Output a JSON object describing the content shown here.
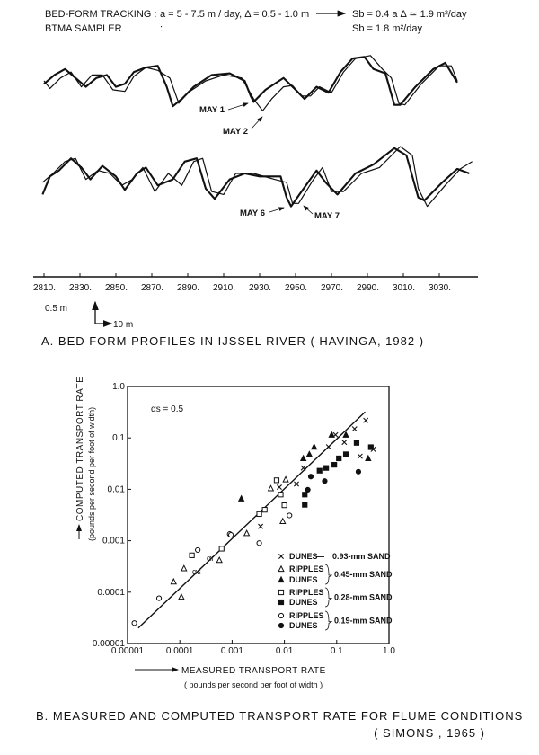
{
  "header": {
    "line1_label": "BED-FORM TRACKING :",
    "line1_params": "a = 5 - 7.5 m / day,  Δ = 0.5 - 1.0 m",
    "line1_result": "Sb = 0.4 a  Δ ≃ 1.9 m²/day",
    "line2_label": "BTMA  SAMPLER",
    "line2_colon": ":",
    "line2_result": "Sb = 1.8 m²/day"
  },
  "chart_data": [
    {
      "type": "line",
      "title": "A. BED FORM PROFILES IN IJSSEL RIVER ( HAVINGA, 1982 )",
      "xlabel": "",
      "ylabel": "",
      "x_ticks": [
        "2810.",
        "2830.",
        "2850.",
        "2870.",
        "2890.",
        "2910.",
        "2930.",
        "2950.",
        "2970.",
        "2990.",
        "3010.",
        "3030."
      ],
      "x_tick_values": [
        2810,
        2830,
        2850,
        2870,
        2890,
        2910,
        2930,
        2950,
        2970,
        2990,
        3010,
        3030
      ],
      "scale_bar": {
        "vertical": "0.5 m",
        "horizontal": "10 m"
      },
      "series": [
        {
          "name": "MAY 1",
          "panel": "upper",
          "weight": "thick",
          "points": [
            [
              2810,
              -0.11
            ],
            [
              2815.8,
              0.22
            ],
            [
              2821.7,
              0.44
            ],
            [
              2827.5,
              0.11
            ],
            [
              2833.3,
              -0.22
            ],
            [
              2839.2,
              0.11
            ],
            [
              2845,
              0.22
            ],
            [
              2850,
              -0.22
            ],
            [
              2855,
              -0.11
            ],
            [
              2860,
              0.33
            ],
            [
              2866.7,
              0.5
            ],
            [
              2873.3,
              0.56
            ],
            [
              2878.3,
              -0.22
            ],
            [
              2881.7,
              -0.94
            ],
            [
              2886.7,
              -0.67
            ],
            [
              2893.3,
              -0.22
            ],
            [
              2903.3,
              0.22
            ],
            [
              2913.3,
              0.28
            ],
            [
              2921.7,
              0
            ],
            [
              2925,
              -0.56
            ],
            [
              2926.7,
              -0.78
            ],
            [
              2933.3,
              -0.33
            ],
            [
              2943.3,
              0.11
            ],
            [
              2950,
              -0.33
            ],
            [
              2955,
              -0.67
            ],
            [
              2961.7,
              -0.22
            ],
            [
              2968.3,
              -0.44
            ],
            [
              2975,
              0.33
            ],
            [
              2981.7,
              0.83
            ],
            [
              2988.3,
              0.89
            ],
            [
              2993.3,
              0.44
            ],
            [
              3000,
              0.28
            ],
            [
              3005,
              -0.89
            ],
            [
              3008.3,
              -0.89
            ],
            [
              3016.7,
              -0.22
            ],
            [
              3026.7,
              0.44
            ],
            [
              3033.3,
              0.67
            ],
            [
              3040,
              -0.06
            ]
          ]
        },
        {
          "name": "MAY 2",
          "panel": "upper",
          "weight": "thin",
          "points": [
            [
              2810,
              0
            ],
            [
              2813.3,
              -0.28
            ],
            [
              2819.2,
              0.11
            ],
            [
              2825,
              0.33
            ],
            [
              2830.8,
              -0.22
            ],
            [
              2836.7,
              0.22
            ],
            [
              2842.5,
              0.22
            ],
            [
              2848.3,
              -0.33
            ],
            [
              2855,
              -0.39
            ],
            [
              2860,
              0.17
            ],
            [
              2866.7,
              0.5
            ],
            [
              2873.3,
              0.39
            ],
            [
              2880,
              0.11
            ],
            [
              2885,
              -0.83
            ],
            [
              2890,
              -0.44
            ],
            [
              2900,
              0
            ],
            [
              2910,
              0.22
            ],
            [
              2920,
              0.11
            ],
            [
              2926.7,
              -0.67
            ],
            [
              2931.7,
              -1.11
            ],
            [
              2936.7,
              -0.67
            ],
            [
              2943.3,
              -0.22
            ],
            [
              2948.3,
              -0.17
            ],
            [
              2953.3,
              -0.56
            ],
            [
              2958.3,
              -0.56
            ],
            [
              2963.3,
              -0.22
            ],
            [
              2970,
              -0.44
            ],
            [
              2976.7,
              0.33
            ],
            [
              2983.3,
              0.83
            ],
            [
              2991.7,
              0.94
            ],
            [
              2998.3,
              0.44
            ],
            [
              3003.3,
              0.11
            ],
            [
              3007.5,
              -0.83
            ],
            [
              3010.8,
              -0.89
            ],
            [
              3020,
              -0.11
            ],
            [
              3030,
              0.56
            ],
            [
              3036.7,
              0.56
            ],
            [
              3040,
              0
            ]
          ]
        },
        {
          "name": "MAY 6",
          "panel": "lower",
          "weight": "thick",
          "points": [
            [
              2809.2,
              -0.78
            ],
            [
              2813.3,
              -0.11
            ],
            [
              2818.3,
              0.11
            ],
            [
              2825,
              0.56
            ],
            [
              2830.8,
              0.22
            ],
            [
              2835.8,
              -0.22
            ],
            [
              2842.5,
              0.28
            ],
            [
              2850,
              -0.11
            ],
            [
              2855,
              -0.61
            ],
            [
              2861.7,
              0
            ],
            [
              2866.7,
              0.22
            ],
            [
              2873.3,
              -0.44
            ],
            [
              2881.7,
              -0.22
            ],
            [
              2888.3,
              0.44
            ],
            [
              2895,
              0.56
            ],
            [
              2900,
              -0.56
            ],
            [
              2905,
              -0.94
            ],
            [
              2913.3,
              -0.22
            ],
            [
              2921.7,
              0
            ],
            [
              2930,
              -0.11
            ],
            [
              2941.7,
              -0.11
            ],
            [
              2945,
              -0.89
            ],
            [
              2947.5,
              -1.22
            ],
            [
              2953.3,
              -0.67
            ],
            [
              2961.7,
              0.11
            ],
            [
              2966.7,
              -0.33
            ],
            [
              2973.3,
              -0.78
            ],
            [
              2983.3,
              0
            ],
            [
              2993.3,
              0.33
            ],
            [
              3005,
              0.94
            ],
            [
              3011.7,
              0.67
            ],
            [
              3018.3,
              -0.89
            ],
            [
              3021.7,
              -1
            ],
            [
              3031.7,
              -0.33
            ],
            [
              3040,
              0.17
            ],
            [
              3046.7,
              0
            ]
          ]
        },
        {
          "name": "MAY 7",
          "panel": "lower",
          "weight": "thin",
          "points": [
            [
              2809.2,
              -0.33
            ],
            [
              2815,
              0
            ],
            [
              2821.7,
              0.44
            ],
            [
              2827.5,
              0.56
            ],
            [
              2833.3,
              -0.22
            ],
            [
              2840,
              0.11
            ],
            [
              2846.7,
              0
            ],
            [
              2853.3,
              -0.44
            ],
            [
              2859.2,
              -0.22
            ],
            [
              2865,
              0.22
            ],
            [
              2871.7,
              -0.67
            ],
            [
              2879.2,
              0
            ],
            [
              2886.7,
              -0.44
            ],
            [
              2893.3,
              0.44
            ],
            [
              2898.3,
              0.56
            ],
            [
              2903.3,
              -0.67
            ],
            [
              2910,
              -0.78
            ],
            [
              2916.7,
              0
            ],
            [
              2926.7,
              0
            ],
            [
              2938.3,
              -0.22
            ],
            [
              2945,
              -0.33
            ],
            [
              2948.3,
              -1.11
            ],
            [
              2951.7,
              -1.11
            ],
            [
              2960,
              -0.22
            ],
            [
              2965,
              0.22
            ],
            [
              2970,
              -0.67
            ],
            [
              2976.7,
              -0.67
            ],
            [
              2986.7,
              0
            ],
            [
              2996.7,
              0.22
            ],
            [
              3008.3,
              1.0
            ],
            [
              3015,
              0.67
            ],
            [
              3018.3,
              -0.56
            ],
            [
              3023.3,
              -1.22
            ],
            [
              3033.3,
              -0.44
            ],
            [
              3041.7,
              0.17
            ],
            [
              3048.3,
              0.44
            ]
          ]
        }
      ]
    },
    {
      "type": "scatter",
      "title": "B. MEASURED AND COMPUTED TRANSPORT RATE FOR FLUME CONDITIONS",
      "source": "( SIMONS , 1965 )",
      "xlabel": "MEASURED TRANSPORT RATE",
      "xlabel_units": "( pounds per second per foot of width )",
      "ylabel": "COMPUTED TRANSPORT RATE",
      "ylabel_units": "(pounds per second per foot of width)",
      "xscale": "log",
      "yscale": "log",
      "xlim": [
        1e-05,
        1.0
      ],
      "ylim": [
        1e-05,
        1.0
      ],
      "x_ticks": [
        "0.00001",
        "0.0001",
        "0.001",
        "0.01",
        "0.1",
        "1.0"
      ],
      "y_ticks": [
        "1.0",
        "0.1",
        "0.01",
        "0.001",
        "0.0001",
        "0.00001"
      ],
      "annotation": "αs = 0.5",
      "point_labels": [
        "αs",
        "αr"
      ],
      "legend_position": "bottom-right",
      "legend": {
        "groups": [
          {
            "entries": [
              {
                "marker": "x",
                "label": "DUNES"
              }
            ],
            "dash": "—",
            "size": "0.93-mm SAND"
          },
          {
            "entries": [
              {
                "marker": "tri-open",
                "label": "RIPPLES"
              },
              {
                "marker": "tri-filled",
                "label": "DUNES"
              }
            ],
            "size": "0.45-mm SAND"
          },
          {
            "entries": [
              {
                "marker": "sq-open",
                "label": "RIPPLES"
              },
              {
                "marker": "sq-filled",
                "label": "DUNES"
              }
            ],
            "size": "0.28-mm SAND"
          },
          {
            "entries": [
              {
                "marker": "circ-open",
                "label": "RIPPLES"
              },
              {
                "marker": "circ-filled",
                "label": "DUNES"
              }
            ],
            "size": "0.19-mm SAND"
          }
        ]
      },
      "fit_line": [
        [
          1.6e-05,
          2e-05
        ],
        [
          0.35,
          0.32
        ]
      ],
      "series": [
        {
          "name": "DUNES 0.93-mm",
          "marker": "x",
          "points": [
            [
              0.008,
              0.011
            ],
            [
              0.017,
              0.0127
            ],
            [
              0.0035,
              0.0019
            ],
            [
              0.023,
              0.026
            ],
            [
              0.095,
              0.115
            ],
            [
              0.22,
              0.15
            ],
            [
              0.36,
              0.22
            ],
            [
              0.28,
              0.044
            ],
            [
              0.5,
              0.06
            ],
            [
              0.07,
              0.067
            ],
            [
              0.14,
              0.082
            ]
          ]
        },
        {
          "name": "RIPPLES 0.45-mm",
          "marker": "tri-open",
          "points": [
            [
              0.000107,
              8.1e-05
            ],
            [
              7.6e-05,
              0.00016
            ],
            [
              0.00012,
              0.00029
            ],
            [
              0.00057,
              0.00042
            ],
            [
              0.0019,
              0.0014
            ],
            [
              0.0055,
              0.0104
            ],
            [
              0.0093,
              0.0024
            ],
            [
              0.0106,
              0.0155
            ]
          ]
        },
        {
          "name": "DUNES 0.45-mm",
          "marker": "tri-filled",
          "points": [
            [
              0.0015,
              0.0066
            ],
            [
              0.023,
              0.04
            ],
            [
              0.037,
              0.067
            ],
            [
              0.08,
              0.115
            ],
            [
              0.15,
              0.115
            ],
            [
              0.4,
              0.04
            ],
            [
              0.03,
              0.048
            ]
          ]
        },
        {
          "name": "RIPPLES 0.28-mm",
          "marker": "sq-open",
          "points": [
            [
              0.00017,
              0.00052
            ],
            [
              0.00063,
              0.0007
            ],
            [
              0.0033,
              0.0033
            ],
            [
              0.0042,
              0.004
            ],
            [
              0.0085,
              0.0079
            ],
            [
              0.01,
              0.0049
            ],
            [
              0.0071,
              0.015
            ]
          ]
        },
        {
          "name": "DUNES 0.28-mm",
          "marker": "sq-filled",
          "points": [
            [
              0.0245,
              0.0079
            ],
            [
              0.0245,
              0.005
            ],
            [
              0.047,
              0.023
            ],
            [
              0.063,
              0.026
            ],
            [
              0.09,
              0.03
            ],
            [
              0.11,
              0.04
            ],
            [
              0.15,
              0.048
            ],
            [
              0.24,
              0.08
            ],
            [
              0.45,
              0.066
            ]
          ]
        },
        {
          "name": "RIPPLES 0.19-mm",
          "marker": "circ-open",
          "points": [
            [
              1.35e-05,
              2.5e-05
            ],
            [
              4e-05,
              7.6e-05
            ],
            [
              0.00022,
              0.00066
            ],
            [
              0.0009,
              0.00135
            ],
            [
              0.00095,
              0.0013
            ],
            [
              0.0033,
              0.0009
            ],
            [
              0.0125,
              0.0031
            ]
          ]
        },
        {
          "name": "DUNES 0.19-mm",
          "marker": "circ-filled",
          "points": [
            [
              0.028,
              0.0098
            ],
            [
              0.059,
              0.0145
            ],
            [
              0.26,
              0.022
            ],
            [
              0.032,
              0.0177
            ]
          ]
        }
      ]
    }
  ],
  "labels": {
    "may1": "MAY 1",
    "may2": "MAY 2",
    "may6": "MAY 6",
    "may7": "MAY 7",
    "scale_v": "0.5 m",
    "scale_h": "10 m"
  }
}
